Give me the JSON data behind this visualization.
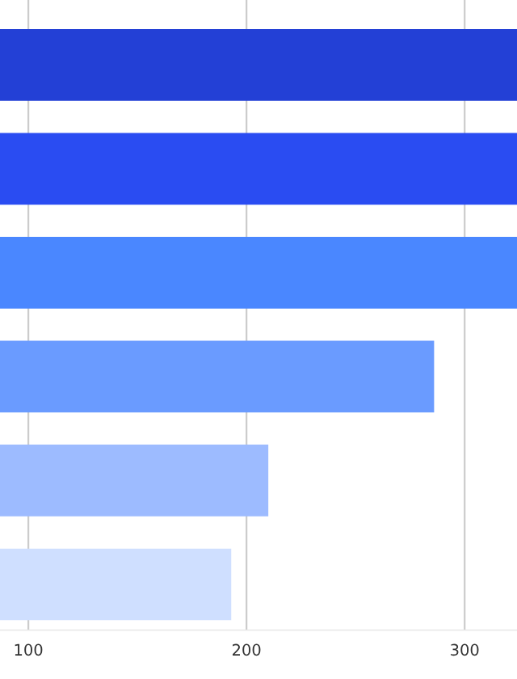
{
  "chart_data": {
    "type": "bar",
    "orientation": "horizontal",
    "categories": [
      null,
      null,
      null,
      null,
      null,
      null
    ],
    "values": [
      324,
      324,
      324,
      286,
      210,
      193
    ],
    "colors": [
      "#2340d6",
      "#2a4cf2",
      "#4a87ff",
      "#6a9bff",
      "#9dbbff",
      "#cfdfff"
    ],
    "xlim": [
      87,
      324
    ],
    "xticks": [
      100,
      200,
      300
    ],
    "grid": "x"
  }
}
